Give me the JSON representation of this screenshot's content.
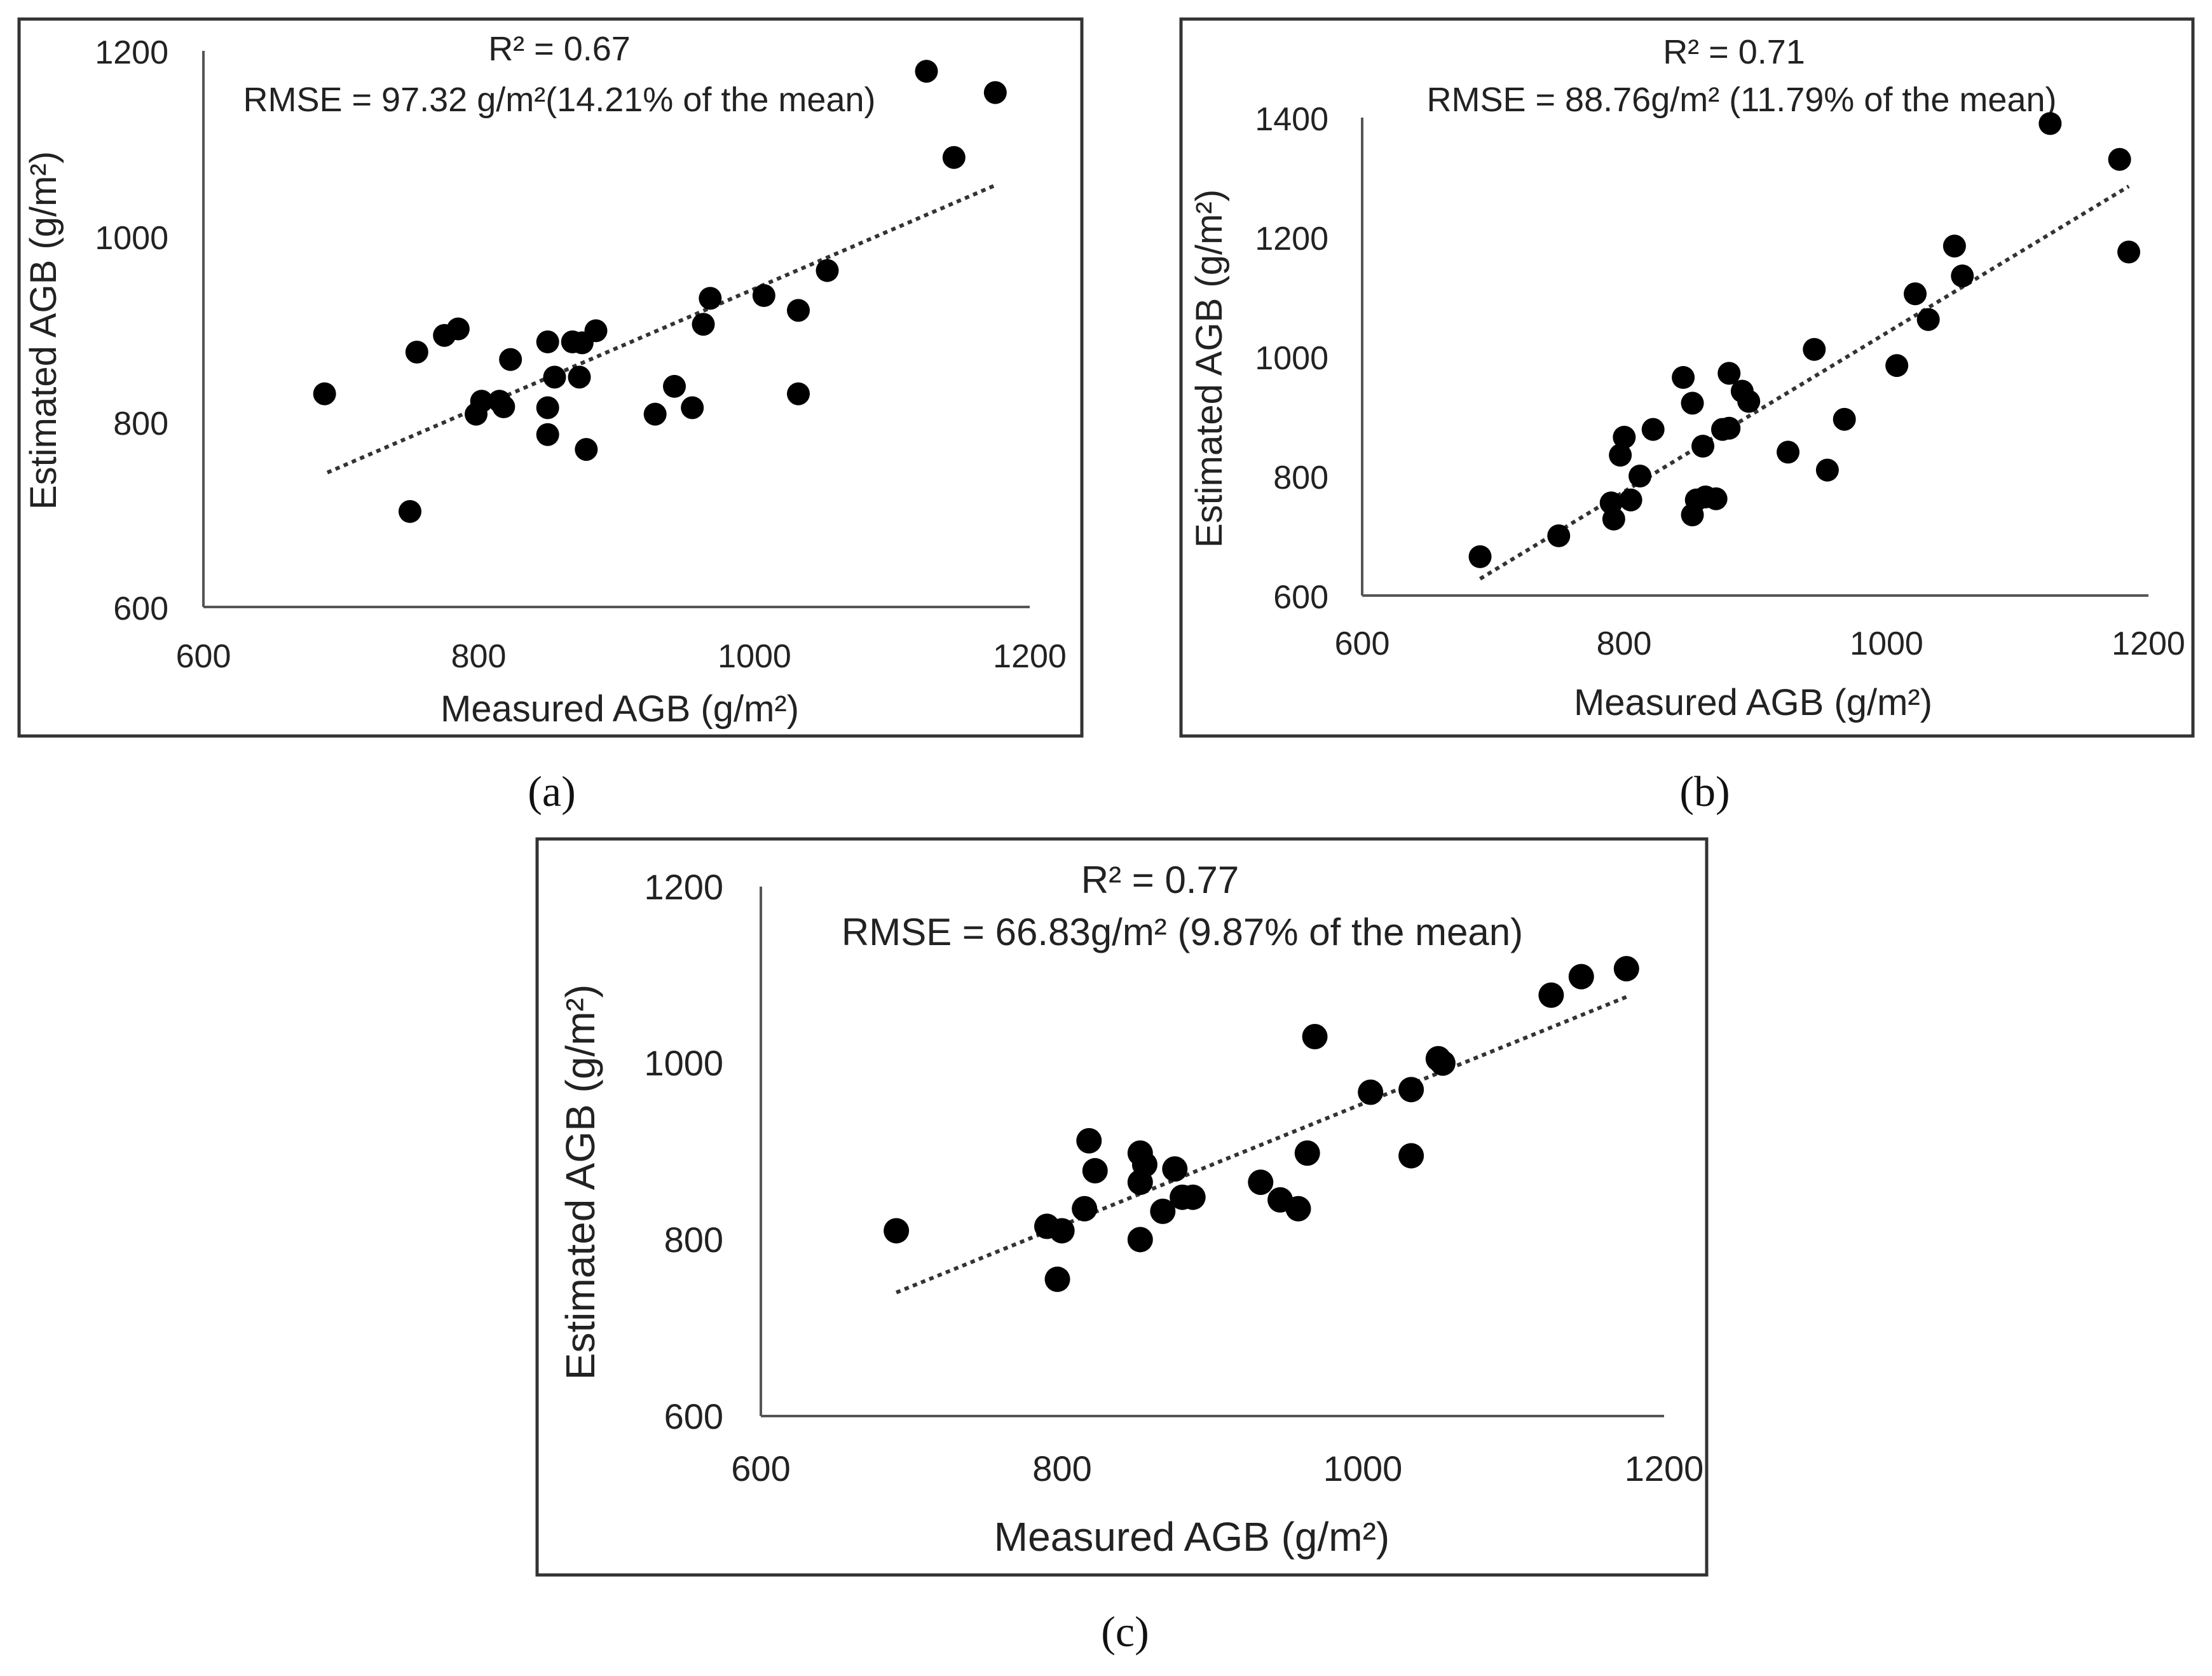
{
  "colors": {
    "frame": "#333333",
    "axis": "#555555",
    "point": "#000000",
    "trend": "#333333",
    "text": "#222222"
  },
  "chart_data": [
    {
      "id": "a",
      "type": "scatter",
      "caption": "(a)",
      "stats_r2": "R² = 0.67",
      "stats_rmse": "RMSE = 97.32 g/m²(14.21% of the mean)",
      "xlabel": "Measured AGB (g/m²)",
      "ylabel": "Estimated AGB (g/m²)",
      "xlim": [
        600,
        1200
      ],
      "ylim": [
        600,
        1200
      ],
      "xticks": [
        600,
        800,
        1000,
        1200
      ],
      "yticks": [
        600,
        800,
        1000,
        1200
      ],
      "xtick_labels": [
        "600",
        "800",
        "1000",
        "1200"
      ],
      "ytick_labels": [
        "600",
        "800",
        "1000",
        "1200"
      ],
      "trendline": {
        "x": [
          690,
          1175
        ],
        "y": [
          745,
          1055
        ]
      },
      "points": [
        [
          688,
          830
        ],
        [
          750,
          703
        ],
        [
          755,
          875
        ],
        [
          775,
          893
        ],
        [
          785,
          900
        ],
        [
          798,
          808
        ],
        [
          802,
          822
        ],
        [
          815,
          822
        ],
        [
          818,
          816
        ],
        [
          823,
          867
        ],
        [
          850,
          886
        ],
        [
          850,
          815
        ],
        [
          850,
          786
        ],
        [
          855,
          848
        ],
        [
          868,
          886
        ],
        [
          873,
          848
        ],
        [
          875,
          885
        ],
        [
          878,
          770
        ],
        [
          885,
          898
        ],
        [
          928,
          808
        ],
        [
          942,
          838
        ],
        [
          955,
          815
        ],
        [
          963,
          905
        ],
        [
          968,
          933
        ],
        [
          1007,
          936
        ],
        [
          1032,
          920
        ],
        [
          1032,
          830
        ],
        [
          1053,
          963
        ],
        [
          1125,
          1178
        ],
        [
          1145,
          1085
        ],
        [
          1175,
          1155
        ]
      ]
    },
    {
      "id": "b",
      "type": "scatter",
      "caption": "(b)",
      "stats_r2": "R² = 0.71",
      "stats_rmse": "RMSE = 88.76g/m² (11.79% of the mean)",
      "xlabel": "Measured AGB (g/m²)",
      "ylabel": "Estimated AGB (g/m²)",
      "xlim": [
        600,
        1200
      ],
      "ylim": [
        600,
        1400
      ],
      "xticks": [
        600,
        800,
        1000,
        1200
      ],
      "yticks": [
        600,
        800,
        1000,
        1200,
        1400
      ],
      "xtick_labels": [
        "600",
        "800",
        "1000",
        "1200"
      ],
      "ytick_labels": [
        "600",
        "800",
        "1000",
        "1200",
        "1400"
      ],
      "trendline": {
        "x": [
          690,
          1185
        ],
        "y": [
          628,
          1285
        ]
      },
      "points": [
        [
          690,
          665
        ],
        [
          750,
          700
        ],
        [
          790,
          755
        ],
        [
          792,
          728
        ],
        [
          797,
          835
        ],
        [
          800,
          865
        ],
        [
          805,
          760
        ],
        [
          812,
          800
        ],
        [
          822,
          878
        ],
        [
          845,
          965
        ],
        [
          852,
          735
        ],
        [
          852,
          922
        ],
        [
          855,
          760
        ],
        [
          860,
          850
        ],
        [
          862,
          765
        ],
        [
          870,
          762
        ],
        [
          875,
          878
        ],
        [
          880,
          880
        ],
        [
          880,
          972
        ],
        [
          890,
          942
        ],
        [
          895,
          925
        ],
        [
          925,
          840
        ],
        [
          945,
          1012
        ],
        [
          955,
          810
        ],
        [
          968,
          895
        ],
        [
          1008,
          985
        ],
        [
          1022,
          1105
        ],
        [
          1032,
          1062
        ],
        [
          1052,
          1185
        ],
        [
          1058,
          1135
        ],
        [
          1125,
          1390
        ],
        [
          1178,
          1330
        ],
        [
          1185,
          1175
        ]
      ]
    },
    {
      "id": "c",
      "type": "scatter",
      "caption": "(c)",
      "stats_r2": "R² = 0.77",
      "stats_rmse": "RMSE = 66.83g/m² (9.87% of the mean)",
      "xlabel": "Measured AGB (g/m²)",
      "ylabel": "Estimated AGB (g/m²)",
      "xlim": [
        600,
        1200
      ],
      "ylim": [
        600,
        1200
      ],
      "xticks": [
        600,
        800,
        1000,
        1200
      ],
      "yticks": [
        600,
        800,
        1000,
        1200
      ],
      "xtick_labels": [
        "600",
        "800",
        "1000",
        "1200"
      ],
      "ytick_labels": [
        "600",
        "800",
        "1000",
        "1200"
      ],
      "trendline": {
        "x": [
          690,
          1175
        ],
        "y": [
          740,
          1075
        ]
      },
      "points": [
        [
          690,
          810
        ],
        [
          790,
          815
        ],
        [
          797,
          755
        ],
        [
          800,
          810
        ],
        [
          815,
          835
        ],
        [
          818,
          912
        ],
        [
          822,
          878
        ],
        [
          852,
          898
        ],
        [
          852,
          865
        ],
        [
          852,
          800
        ],
        [
          855,
          885
        ],
        [
          867,
          832
        ],
        [
          875,
          880
        ],
        [
          880,
          848
        ],
        [
          887,
          848
        ],
        [
          932,
          865
        ],
        [
          945,
          845
        ],
        [
          957,
          835
        ],
        [
          963,
          898
        ],
        [
          968,
          1030
        ],
        [
          1005,
          967
        ],
        [
          1032,
          970
        ],
        [
          1032,
          895
        ],
        [
          1050,
          1005
        ],
        [
          1053,
          1000
        ],
        [
          1125,
          1077
        ],
        [
          1145,
          1098
        ],
        [
          1175,
          1107
        ]
      ]
    }
  ]
}
